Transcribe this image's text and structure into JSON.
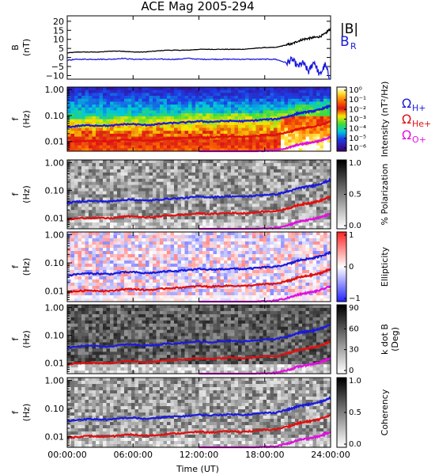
{
  "chart_data": {
    "type": "spectrogram",
    "title": "ACE Mag 2005-294",
    "xlabel": "Time (UT)",
    "x_tick_labels": [
      "00:00:00",
      "06:00:00",
      "12:00:00",
      "18:00:00",
      "24:00:00"
    ],
    "x_ticks_hours": [
      0,
      6,
      12,
      18,
      24
    ],
    "xlim_hours": [
      0,
      24
    ],
    "panels": [
      {
        "id": "B",
        "type": "line",
        "ylabel": [
          "B",
          "(nT)"
        ],
        "y_tick_labels": [
          "20",
          "15",
          "10",
          "5",
          "0",
          "−5",
          "−10"
        ],
        "y_ticks": [
          20,
          15,
          10,
          5,
          0,
          -5,
          -10
        ],
        "ylim": [
          -12,
          23
        ],
        "legend": [
          {
            "label": "|B|",
            "color": "#000000"
          },
          {
            "label": "B",
            "sub": "R",
            "color": "#1a1adc"
          }
        ],
        "series": [
          {
            "name": "|B|",
            "color": "#000000",
            "x": [
              0,
              1,
              2,
              3,
              4,
              5,
              6,
              7,
              8,
              9,
              10,
              11,
              12,
              13,
              14,
              15,
              16,
              17,
              18,
              19,
              20,
              20.5,
              21,
              21.5,
              22,
              22.5,
              23,
              23.5,
              24
            ],
            "values": [
              2.5,
              3,
              3,
              3,
              3.5,
              3.5,
              3,
              3,
              3.5,
              4,
              4,
              4,
              4.5,
              4.5,
              4.5,
              4.5,
              4.5,
              5,
              5.5,
              5.5,
              7,
              7.5,
              9,
              10,
              10.5,
              11,
              11.5,
              13,
              16
            ]
          },
          {
            "name": "B_R",
            "color": "#1a1adc",
            "x": [
              0,
              1,
              2,
              3,
              4,
              5,
              6,
              7,
              8,
              9,
              10,
              11,
              12,
              13,
              14,
              15,
              16,
              17,
              18,
              19,
              20,
              20.5,
              21,
              21.5,
              22,
              22.5,
              23,
              23.5,
              24
            ],
            "values": [
              -1.5,
              -1,
              -1,
              -1,
              -1,
              -0.5,
              -1,
              -1,
              -1,
              -1,
              -1,
              -0.5,
              -1,
              -1,
              -1,
              -1,
              -1,
              -1,
              -1,
              -1,
              -3,
              -1,
              -5,
              -3,
              -8,
              -2,
              -10,
              -4,
              -13
            ]
          }
        ]
      },
      {
        "id": "intensity",
        "type": "heatmap",
        "ylabel": [
          "f",
          "(Hz)"
        ],
        "y_tick_labels": [
          "1.00",
          "0.10",
          "0.01"
        ],
        "colorbar_label": "Intensity (nT²/Hz)",
        "colorbar_tick_labels": [
          "10⁰",
          "10⁻¹",
          "10⁻²",
          "10⁻³",
          "10⁻⁴",
          "10⁻⁵",
          "10⁻⁶"
        ],
        "colormap": "rainbow",
        "gyro_lines": [
          "H+",
          "He+",
          "O+"
        ]
      },
      {
        "id": "polarization",
        "type": "heatmap",
        "ylabel": [
          "f",
          "(Hz)"
        ],
        "y_tick_labels": [
          "1.00",
          "0.10",
          "0.01"
        ],
        "colorbar_label": "% Polarization",
        "colorbar_tick_labels": [
          "1.0",
          "0.5",
          "0.0"
        ],
        "colormap": "gray",
        "gyro_lines": [
          "H+",
          "He+",
          "O+"
        ]
      },
      {
        "id": "ellipticity",
        "type": "heatmap",
        "ylabel": [
          "f",
          "(Hz)"
        ],
        "y_tick_labels": [
          "1.00",
          "0.10",
          "0.01"
        ],
        "colorbar_label": "Ellipticity",
        "colorbar_tick_labels": [
          "1",
          "0",
          "−1"
        ],
        "colormap": "bwr",
        "gyro_lines": [
          "H+",
          "He+",
          "O+"
        ]
      },
      {
        "id": "kdotb",
        "type": "heatmap",
        "ylabel": [
          "f",
          "(Hz)"
        ],
        "y_tick_labels": [
          "1.00",
          "0.10",
          "0.01"
        ],
        "colorbar_label": [
          "k dot B",
          "(Deg)"
        ],
        "colorbar_tick_labels": [
          "90",
          "60",
          "30",
          "0"
        ],
        "colormap": "gray",
        "gyro_lines": [
          "H+",
          "He+",
          "O+"
        ]
      },
      {
        "id": "coherency",
        "type": "heatmap",
        "ylabel": [
          "f",
          "(Hz)"
        ],
        "y_tick_labels": [
          "1.00",
          "0.10",
          "0.01"
        ],
        "colorbar_label": "Coherency",
        "colorbar_tick_labels": [
          "1.0",
          "0.5",
          "0.0"
        ],
        "colormap": "gray",
        "gyro_lines": [
          "H+",
          "He+",
          "O+"
        ]
      }
    ],
    "gyrofrequency_lines": [
      {
        "ion": "H+",
        "label": "Ω",
        "sub": "H+",
        "color": "#1a1adc",
        "x": [
          0,
          1,
          2,
          3,
          4,
          5,
          6,
          7,
          8,
          9,
          10,
          11,
          12,
          13,
          14,
          15,
          16,
          17,
          18,
          19,
          20,
          20.5,
          21,
          21.5,
          22,
          22.5,
          23,
          23.5,
          24
        ],
        "f_hz": [
          0.035,
          0.04,
          0.042,
          0.041,
          0.04,
          0.046,
          0.047,
          0.043,
          0.045,
          0.05,
          0.052,
          0.055,
          0.06,
          0.057,
          0.06,
          0.062,
          0.06,
          0.064,
          0.07,
          0.072,
          0.09,
          0.1,
          0.12,
          0.13,
          0.14,
          0.15,
          0.17,
          0.2,
          0.24
        ]
      },
      {
        "ion": "He+",
        "label": "Ω",
        "sub": "He+",
        "color": "#e01010",
        "x": [
          0,
          1,
          2,
          3,
          4,
          5,
          6,
          7,
          8,
          9,
          10,
          11,
          12,
          13,
          14,
          15,
          16,
          17,
          18,
          19,
          20,
          20.5,
          21,
          21.5,
          22,
          22.5,
          23,
          23.5,
          24
        ],
        "f_hz": [
          0.009,
          0.01,
          0.0105,
          0.0102,
          0.01,
          0.0115,
          0.0118,
          0.0108,
          0.0112,
          0.0125,
          0.013,
          0.0138,
          0.015,
          0.0142,
          0.015,
          0.0155,
          0.015,
          0.016,
          0.0175,
          0.018,
          0.0225,
          0.025,
          0.03,
          0.032,
          0.035,
          0.038,
          0.042,
          0.05,
          0.06
        ]
      },
      {
        "ion": "O+",
        "label": "Ω",
        "sub": "O+",
        "color": "#e010e0",
        "x": [
          12,
          13,
          14,
          15,
          16,
          17,
          18,
          19,
          20,
          20.5,
          21,
          21.5,
          22,
          22.5,
          23,
          23.5,
          24
        ],
        "f_hz": [
          0.0038,
          0.0036,
          0.0038,
          0.0039,
          0.0038,
          0.004,
          0.0044,
          0.0045,
          0.0056,
          0.0063,
          0.0075,
          0.008,
          0.0088,
          0.0095,
          0.0105,
          0.0125,
          0.015
        ]
      }
    ]
  }
}
